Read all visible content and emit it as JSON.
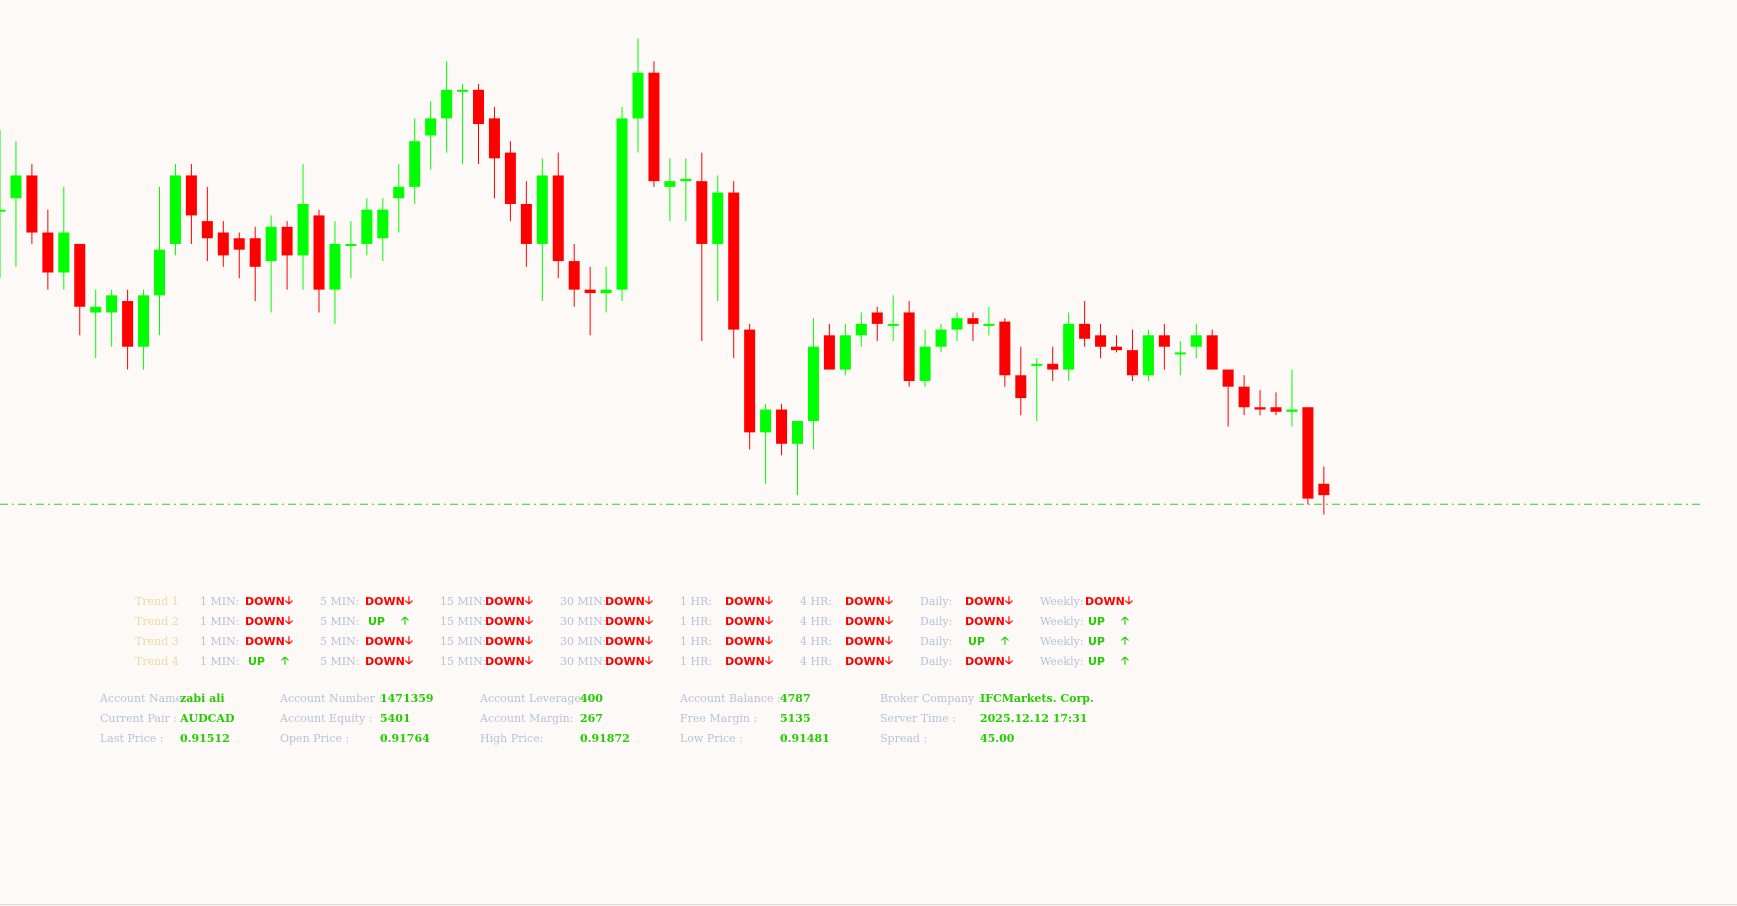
{
  "chart_data": {
    "type": "candlestick",
    "symbol": "AUDCAD",
    "price_line": 0.91512,
    "colors": {
      "bull": "#00ff00",
      "bear": "#ff0000",
      "price_line": "#33cc33",
      "background": "#fdf9f6"
    },
    "candles": [
      {
        "o": 0.9177,
        "h": 0.9184,
        "l": 0.9171,
        "c": 0.9177
      },
      {
        "o": 0.9178,
        "h": 0.9183,
        "l": 0.9172,
        "c": 0.918
      },
      {
        "o": 0.918,
        "h": 0.9181,
        "l": 0.9174,
        "c": 0.9175
      },
      {
        "o": 0.9175,
        "h": 0.9177,
        "l": 0.917,
        "c": 0.91715
      },
      {
        "o": 0.91715,
        "h": 0.9179,
        "l": 0.917,
        "c": 0.9175
      },
      {
        "o": 0.9174,
        "h": 0.9174,
        "l": 0.9166,
        "c": 0.91685
      },
      {
        "o": 0.9168,
        "h": 0.917,
        "l": 0.9164,
        "c": 0.91685
      },
      {
        "o": 0.9168,
        "h": 0.917,
        "l": 0.9165,
        "c": 0.91695
      },
      {
        "o": 0.9169,
        "h": 0.917,
        "l": 0.9163,
        "c": 0.9165
      },
      {
        "o": 0.9165,
        "h": 0.917,
        "l": 0.9163,
        "c": 0.91695
      },
      {
        "o": 0.91695,
        "h": 0.9179,
        "l": 0.9166,
        "c": 0.91735
      },
      {
        "o": 0.9174,
        "h": 0.9181,
        "l": 0.9173,
        "c": 0.918
      },
      {
        "o": 0.918,
        "h": 0.9181,
        "l": 0.9174,
        "c": 0.91765
      },
      {
        "o": 0.9176,
        "h": 0.9179,
        "l": 0.91725,
        "c": 0.91745
      },
      {
        "o": 0.9175,
        "h": 0.9176,
        "l": 0.9172,
        "c": 0.9173
      },
      {
        "o": 0.91745,
        "h": 0.9175,
        "l": 0.9171,
        "c": 0.91735
      },
      {
        "o": 0.91745,
        "h": 0.91755,
        "l": 0.9169,
        "c": 0.9172
      },
      {
        "o": 0.91725,
        "h": 0.91765,
        "l": 0.9168,
        "c": 0.91755
      },
      {
        "o": 0.91755,
        "h": 0.9176,
        "l": 0.917,
        "c": 0.9173
      },
      {
        "o": 0.9173,
        "h": 0.9181,
        "l": 0.917,
        "c": 0.91775
      },
      {
        "o": 0.91765,
        "h": 0.9177,
        "l": 0.9168,
        "c": 0.917
      },
      {
        "o": 0.917,
        "h": 0.9176,
        "l": 0.9167,
        "c": 0.9174
      },
      {
        "o": 0.9174,
        "h": 0.9176,
        "l": 0.9171,
        "c": 0.9174
      },
      {
        "o": 0.9174,
        "h": 0.9178,
        "l": 0.9173,
        "c": 0.9177
      },
      {
        "o": 0.91745,
        "h": 0.9178,
        "l": 0.91725,
        "c": 0.9177
      },
      {
        "o": 0.9178,
        "h": 0.9181,
        "l": 0.9175,
        "c": 0.9179
      },
      {
        "o": 0.9179,
        "h": 0.9185,
        "l": 0.91775,
        "c": 0.9183
      },
      {
        "o": 0.91835,
        "h": 0.91865,
        "l": 0.91805,
        "c": 0.9185
      },
      {
        "o": 0.9185,
        "h": 0.919,
        "l": 0.9182,
        "c": 0.91875
      },
      {
        "o": 0.91875,
        "h": 0.9188,
        "l": 0.9181,
        "c": 0.91875
      },
      {
        "o": 0.91875,
        "h": 0.9188,
        "l": 0.9181,
        "c": 0.91845
      },
      {
        "o": 0.9185,
        "h": 0.9186,
        "l": 0.9178,
        "c": 0.91815
      },
      {
        "o": 0.9182,
        "h": 0.9183,
        "l": 0.9176,
        "c": 0.91775
      },
      {
        "o": 0.91775,
        "h": 0.91795,
        "l": 0.9172,
        "c": 0.9174
      },
      {
        "o": 0.9174,
        "h": 0.91815,
        "l": 0.9169,
        "c": 0.918
      },
      {
        "o": 0.918,
        "h": 0.9182,
        "l": 0.9171,
        "c": 0.91725
      },
      {
        "o": 0.91725,
        "h": 0.9174,
        "l": 0.91685,
        "c": 0.917
      },
      {
        "o": 0.917,
        "h": 0.9172,
        "l": 0.9166,
        "c": 0.91697
      },
      {
        "o": 0.91697,
        "h": 0.9172,
        "l": 0.9168,
        "c": 0.917
      },
      {
        "o": 0.917,
        "h": 0.9186,
        "l": 0.9169,
        "c": 0.9185
      },
      {
        "o": 0.9185,
        "h": 0.9192,
        "l": 0.9182,
        "c": 0.9189
      },
      {
        "o": 0.9189,
        "h": 0.919,
        "l": 0.9179,
        "c": 0.91795
      },
      {
        "o": 0.9179,
        "h": 0.91815,
        "l": 0.9176,
        "c": 0.91795
      },
      {
        "o": 0.91795,
        "h": 0.91815,
        "l": 0.9176,
        "c": 0.91797
      },
      {
        "o": 0.91795,
        "h": 0.9182,
        "l": 0.91655,
        "c": 0.9174
      },
      {
        "o": 0.9174,
        "h": 0.918,
        "l": 0.9169,
        "c": 0.91785
      },
      {
        "o": 0.91785,
        "h": 0.91795,
        "l": 0.9164,
        "c": 0.91665
      },
      {
        "o": 0.91665,
        "h": 0.9167,
        "l": 0.9156,
        "c": 0.91575
      },
      {
        "o": 0.91575,
        "h": 0.916,
        "l": 0.9153,
        "c": 0.91595
      },
      {
        "o": 0.91595,
        "h": 0.916,
        "l": 0.91555,
        "c": 0.91565
      },
      {
        "o": 0.91565,
        "h": 0.91585,
        "l": 0.9152,
        "c": 0.91585
      },
      {
        "o": 0.91585,
        "h": 0.91675,
        "l": 0.9156,
        "c": 0.9165
      },
      {
        "o": 0.9166,
        "h": 0.9167,
        "l": 0.9163,
        "c": 0.9163
      },
      {
        "o": 0.9163,
        "h": 0.9167,
        "l": 0.91625,
        "c": 0.9166
      },
      {
        "o": 0.9166,
        "h": 0.9168,
        "l": 0.9165,
        "c": 0.9167
      },
      {
        "o": 0.9168,
        "h": 0.91685,
        "l": 0.91655,
        "c": 0.9167
      },
      {
        "o": 0.9167,
        "h": 0.91695,
        "l": 0.91655,
        "c": 0.9167
      },
      {
        "o": 0.9168,
        "h": 0.9169,
        "l": 0.91615,
        "c": 0.9162
      },
      {
        "o": 0.9162,
        "h": 0.91665,
        "l": 0.91615,
        "c": 0.9165
      },
      {
        "o": 0.9165,
        "h": 0.9167,
        "l": 0.91645,
        "c": 0.91665
      },
      {
        "o": 0.91665,
        "h": 0.9168,
        "l": 0.91655,
        "c": 0.91675
      },
      {
        "o": 0.91675,
        "h": 0.9168,
        "l": 0.91655,
        "c": 0.9167
      },
      {
        "o": 0.9167,
        "h": 0.91685,
        "l": 0.9166,
        "c": 0.9167
      },
      {
        "o": 0.91672,
        "h": 0.91675,
        "l": 0.91615,
        "c": 0.91625
      },
      {
        "o": 0.91625,
        "h": 0.9165,
        "l": 0.9159,
        "c": 0.91605
      },
      {
        "o": 0.91635,
        "h": 0.9164,
        "l": 0.91585,
        "c": 0.91635
      },
      {
        "o": 0.91635,
        "h": 0.9165,
        "l": 0.9162,
        "c": 0.9163
      },
      {
        "o": 0.9163,
        "h": 0.9168,
        "l": 0.9162,
        "c": 0.9167
      },
      {
        "o": 0.9167,
        "h": 0.9169,
        "l": 0.9165,
        "c": 0.91657
      },
      {
        "o": 0.9166,
        "h": 0.9167,
        "l": 0.9164,
        "c": 0.9165
      },
      {
        "o": 0.9165,
        "h": 0.9166,
        "l": 0.91645,
        "c": 0.91647
      },
      {
        "o": 0.91647,
        "h": 0.91665,
        "l": 0.9162,
        "c": 0.91625
      },
      {
        "o": 0.91625,
        "h": 0.91665,
        "l": 0.9162,
        "c": 0.9166
      },
      {
        "o": 0.9166,
        "h": 0.9167,
        "l": 0.9163,
        "c": 0.9165
      },
      {
        "o": 0.91645,
        "h": 0.91655,
        "l": 0.91625,
        "c": 0.91645
      },
      {
        "o": 0.9165,
        "h": 0.9167,
        "l": 0.9164,
        "c": 0.9166
      },
      {
        "o": 0.9166,
        "h": 0.91665,
        "l": 0.9163,
        "c": 0.9163
      },
      {
        "o": 0.9163,
        "h": 0.9163,
        "l": 0.9158,
        "c": 0.91615
      },
      {
        "o": 0.91615,
        "h": 0.91625,
        "l": 0.9159,
        "c": 0.91597
      },
      {
        "o": 0.91597,
        "h": 0.91612,
        "l": 0.9159,
        "c": 0.91595
      },
      {
        "o": 0.91597,
        "h": 0.9161,
        "l": 0.9159,
        "c": 0.91593
      },
      {
        "o": 0.91593,
        "h": 0.9163,
        "l": 0.9158,
        "c": 0.91595
      },
      {
        "o": 0.91597,
        "h": 0.91597,
        "l": 0.91512,
        "c": 0.91517
      },
      {
        "o": 0.9153,
        "h": 0.91545,
        "l": 0.91503,
        "c": 0.9152
      }
    ]
  },
  "trend_panel": {
    "rows": [
      {
        "name": "Trend 1",
        "cells": [
          {
            "label": "1 MIN:",
            "value": "DOWN",
            "dir": "down"
          },
          {
            "label": "5 MIN:",
            "value": "DOWN",
            "dir": "down"
          },
          {
            "label": "15 MIN:",
            "value": "DOWN",
            "dir": "down"
          },
          {
            "label": "30 MIN:",
            "value": "DOWN",
            "dir": "down"
          },
          {
            "label": "1 HR:",
            "value": "DOWN",
            "dir": "down"
          },
          {
            "label": "4 HR:",
            "value": "DOWN",
            "dir": "down"
          },
          {
            "label": "Daily:",
            "value": "DOWN",
            "dir": "down"
          },
          {
            "label": "Weekly:",
            "value": "DOWN",
            "dir": "down"
          }
        ]
      },
      {
        "name": "Trend 2",
        "cells": [
          {
            "label": "1 MIN:",
            "value": "DOWN",
            "dir": "down"
          },
          {
            "label": "5 MIN:",
            "value": "UP",
            "dir": "up"
          },
          {
            "label": "15 MIN:",
            "value": "DOWN",
            "dir": "down"
          },
          {
            "label": "30 MIN:",
            "value": "DOWN",
            "dir": "down"
          },
          {
            "label": "1 HR:",
            "value": "DOWN",
            "dir": "down"
          },
          {
            "label": "4 HR:",
            "value": "DOWN",
            "dir": "down"
          },
          {
            "label": "Daily:",
            "value": "DOWN",
            "dir": "down"
          },
          {
            "label": "Weekly:",
            "value": "UP",
            "dir": "up"
          }
        ]
      },
      {
        "name": "Trend 3",
        "cells": [
          {
            "label": "1 MIN:",
            "value": "DOWN",
            "dir": "down"
          },
          {
            "label": "5 MIN:",
            "value": "DOWN",
            "dir": "down"
          },
          {
            "label": "15 MIN:",
            "value": "DOWN",
            "dir": "down"
          },
          {
            "label": "30 MIN:",
            "value": "DOWN",
            "dir": "down"
          },
          {
            "label": "1 HR:",
            "value": "DOWN",
            "dir": "down"
          },
          {
            "label": "4 HR:",
            "value": "DOWN",
            "dir": "down"
          },
          {
            "label": "Daily:",
            "value": "UP",
            "dir": "up"
          },
          {
            "label": "Weekly:",
            "value": "UP",
            "dir": "up"
          }
        ]
      },
      {
        "name": "Trend 4",
        "cells": [
          {
            "label": "1 MIN:",
            "value": "UP",
            "dir": "up"
          },
          {
            "label": "5 MIN:",
            "value": "DOWN",
            "dir": "down"
          },
          {
            "label": "15 MIN:",
            "value": "DOWN",
            "dir": "down"
          },
          {
            "label": "30 MIN:",
            "value": "DOWN",
            "dir": "down"
          },
          {
            "label": "1 HR:",
            "value": "DOWN",
            "dir": "down"
          },
          {
            "label": "4 HR:",
            "value": "DOWN",
            "dir": "down"
          },
          {
            "label": "Daily:",
            "value": "DOWN",
            "dir": "down"
          },
          {
            "label": "Weekly:",
            "value": "UP",
            "dir": "up"
          }
        ]
      }
    ],
    "down_arrow": "🡣",
    "up_arrow": "🡡"
  },
  "account_panel": {
    "rows": [
      [
        {
          "label": "Account Name:",
          "value": "zabi ali"
        },
        {
          "label": "Account Number :",
          "value": "1471359"
        },
        {
          "label": "Account Leverage:",
          "value": "400"
        },
        {
          "label": "Account Balance :",
          "value": "4787"
        },
        {
          "label": "Broker Company :",
          "value": "IFCMarkets. Corp."
        }
      ],
      [
        {
          "label": "Current Pair :",
          "value": "AUDCAD"
        },
        {
          "label": "Account Equity :",
          "value": "5401"
        },
        {
          "label": "Account Margin:",
          "value": "267"
        },
        {
          "label": "Free Margin :",
          "value": "5135"
        },
        {
          "label": "Server Time :",
          "value": "2025.12.12 17:31"
        }
      ],
      [
        {
          "label": "Last Price :",
          "value": "0.91512"
        },
        {
          "label": "Open Price :",
          "value": "0.91764"
        },
        {
          "label": "High Price:",
          "value": "0.91872"
        },
        {
          "label": "Low Price :",
          "value": "0.91481"
        },
        {
          "label": "Spread :",
          "value": "45.00"
        }
      ]
    ]
  }
}
